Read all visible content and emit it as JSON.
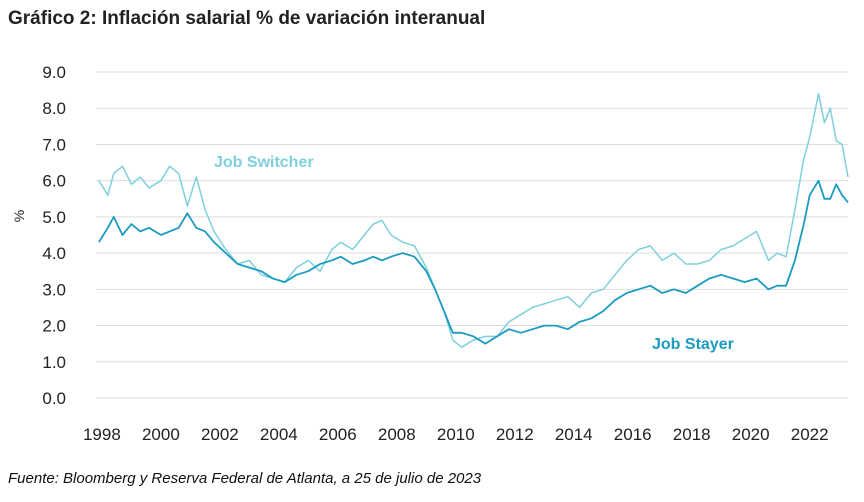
{
  "chart_data": {
    "type": "line",
    "title": "Gráfico 2: Inflación salarial % de variación interanual",
    "source": "Fuente: Bloomberg y Reserva Federal de Atlanta, a 25 de julio de 2023",
    "xlabel": "",
    "ylabel": "%",
    "xlim": [
      1997.8,
      2023.3
    ],
    "ylim": [
      0,
      9
    ],
    "grid": true,
    "x_ticks": [
      "1998",
      "2000",
      "2002",
      "2004",
      "2006",
      "2008",
      "2010",
      "2012",
      "2014",
      "2016",
      "2018",
      "2020",
      "2022"
    ],
    "y_ticks": [
      "0.0",
      "1.0",
      "2.0",
      "3.0",
      "4.0",
      "5.0",
      "6.0",
      "7.0",
      "8.0",
      "9.0"
    ],
    "x": [
      1997.9,
      1998.2,
      1998.4,
      1998.7,
      1999.0,
      1999.3,
      1999.6,
      2000.0,
      2000.3,
      2000.6,
      2000.9,
      2001.2,
      2001.5,
      2001.8,
      2002.2,
      2002.6,
      2003.0,
      2003.4,
      2003.8,
      2004.2,
      2004.6,
      2005.0,
      2005.4,
      2005.8,
      2006.1,
      2006.5,
      2006.9,
      2007.2,
      2007.5,
      2007.8,
      2008.2,
      2008.6,
      2009.0,
      2009.3,
      2009.6,
      2009.9,
      2010.2,
      2010.6,
      2011.0,
      2011.4,
      2011.8,
      2012.2,
      2012.6,
      2013.0,
      2013.4,
      2013.8,
      2014.2,
      2014.6,
      2015.0,
      2015.4,
      2015.8,
      2016.2,
      2016.6,
      2017.0,
      2017.4,
      2017.8,
      2018.2,
      2018.6,
      2019.0,
      2019.4,
      2019.8,
      2020.2,
      2020.6,
      2020.9,
      2021.2,
      2021.5,
      2021.8,
      2022.0,
      2022.3,
      2022.5,
      2022.7,
      2022.9,
      2023.1,
      2023.3
    ],
    "series": [
      {
        "name": "Job Switcher",
        "color": "#7fd0df",
        "values": [
          6.0,
          5.6,
          6.2,
          6.4,
          5.9,
          6.1,
          5.8,
          6.0,
          6.4,
          6.2,
          5.3,
          6.1,
          5.2,
          4.6,
          4.1,
          3.7,
          3.8,
          3.4,
          3.3,
          3.2,
          3.6,
          3.8,
          3.5,
          4.1,
          4.3,
          4.1,
          4.5,
          4.8,
          4.9,
          4.5,
          4.3,
          4.2,
          3.6,
          3.0,
          2.4,
          1.6,
          1.4,
          1.6,
          1.7,
          1.7,
          2.1,
          2.3,
          2.5,
          2.6,
          2.7,
          2.8,
          2.5,
          2.9,
          3.0,
          3.4,
          3.8,
          4.1,
          4.2,
          3.8,
          4.0,
          3.7,
          3.7,
          3.8,
          4.1,
          4.2,
          4.4,
          4.6,
          3.8,
          4.0,
          3.9,
          5.2,
          6.6,
          7.2,
          8.4,
          7.6,
          8.0,
          7.1,
          7.0,
          6.1
        ]
      },
      {
        "name": "Job Stayer",
        "color": "#1a9cc0",
        "values": [
          4.3,
          4.7,
          5.0,
          4.5,
          4.8,
          4.6,
          4.7,
          4.5,
          4.6,
          4.7,
          5.1,
          4.7,
          4.6,
          4.3,
          4.0,
          3.7,
          3.6,
          3.5,
          3.3,
          3.2,
          3.4,
          3.5,
          3.7,
          3.8,
          3.9,
          3.7,
          3.8,
          3.9,
          3.8,
          3.9,
          4.0,
          3.9,
          3.5,
          3.0,
          2.4,
          1.8,
          1.8,
          1.7,
          1.5,
          1.7,
          1.9,
          1.8,
          1.9,
          2.0,
          2.0,
          1.9,
          2.1,
          2.2,
          2.4,
          2.7,
          2.9,
          3.0,
          3.1,
          2.9,
          3.0,
          2.9,
          3.1,
          3.3,
          3.4,
          3.3,
          3.2,
          3.3,
          3.0,
          3.1,
          3.1,
          3.8,
          4.8,
          5.6,
          6.0,
          5.5,
          5.5,
          5.9,
          5.6,
          5.4
        ]
      }
    ]
  }
}
